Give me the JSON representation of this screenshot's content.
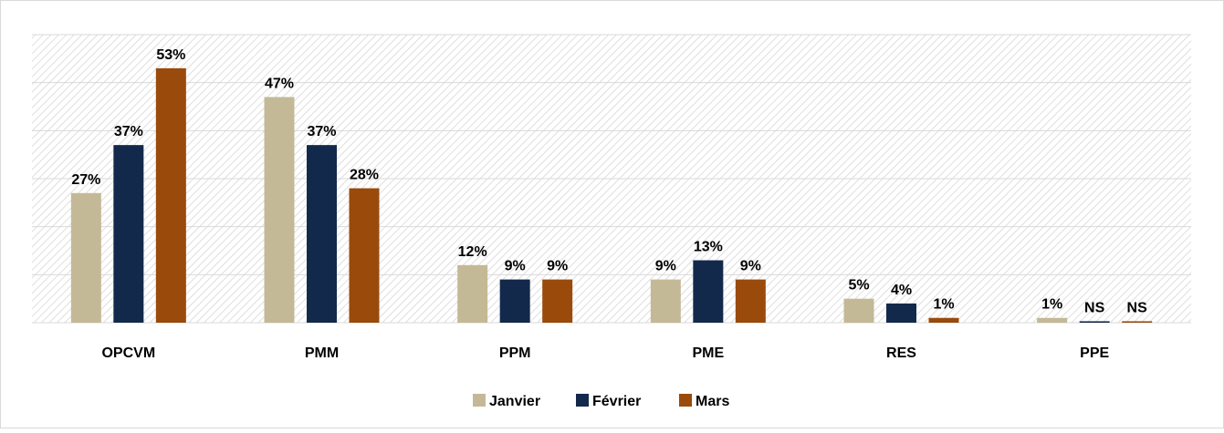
{
  "chart_data": {
    "type": "bar",
    "categories": [
      "OPCVM",
      "PMM",
      "PPM",
      "PME",
      "RES",
      "PPE"
    ],
    "series": [
      {
        "name": "Janvier",
        "color": "#c4b996",
        "values": [
          27,
          47,
          12,
          9,
          5,
          1
        ],
        "value_labels": [
          "27%",
          "47%",
          "12%",
          "9%",
          "5%",
          "1%"
        ]
      },
      {
        "name": "Février",
        "color": "#13294b",
        "values": [
          37,
          37,
          9,
          13,
          4,
          0.3
        ],
        "value_labels": [
          "37%",
          "37%",
          "9%",
          "13%",
          "4%",
          "NS"
        ]
      },
      {
        "name": "Mars",
        "color": "#9a4a0b",
        "values": [
          53,
          28,
          9,
          9,
          1,
          0.3
        ],
        "value_labels": [
          "53%",
          "28%",
          "9%",
          "9%",
          "1%",
          "NS"
        ]
      }
    ],
    "ylim": [
      0,
      60
    ],
    "yticks": [
      0,
      10,
      20,
      30,
      40,
      50,
      60
    ],
    "grid": true,
    "legend": "bottom"
  }
}
